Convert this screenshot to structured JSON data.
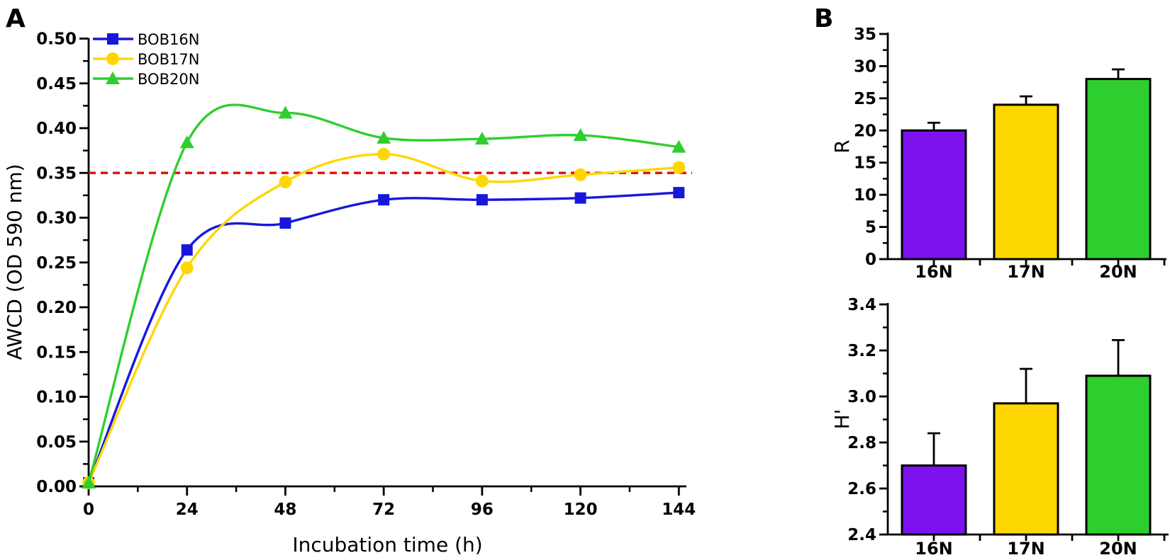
{
  "figure": {
    "panel_a_label": "A",
    "panel_b_label": "B"
  },
  "colors": {
    "blue": "#1717DC",
    "yellow": "#FFD700",
    "green": "#2FCE2F",
    "purple": "#7D12F0",
    "red_dashed": "#E81212",
    "axis": "#000000"
  },
  "chart_data": [
    {
      "id": "awcd_line",
      "type": "line",
      "xlabel": "Incubation time (h)",
      "ylabel": "AWCD (OD 590 nm)",
      "x": [
        0,
        24,
        48,
        72,
        96,
        120,
        144
      ],
      "series": [
        {
          "name": "BOB16N",
          "marker": "square",
          "color_key": "blue",
          "values": [
            0.004,
            0.264,
            0.294,
            0.32,
            0.32,
            0.322,
            0.328
          ]
        },
        {
          "name": "BOB17N",
          "marker": "circle",
          "color_key": "yellow",
          "values": [
            0.004,
            0.244,
            0.34,
            0.371,
            0.341,
            0.348,
            0.356
          ]
        },
        {
          "name": "BOB20N",
          "marker": "triangle",
          "color_key": "green",
          "values": [
            0.004,
            0.384,
            0.417,
            0.389,
            0.388,
            0.392,
            0.379
          ]
        }
      ],
      "threshold": {
        "value": 0.35,
        "style": "dashed",
        "color_key": "red_dashed"
      },
      "xlim": [
        0,
        146
      ],
      "ylim": [
        0,
        0.5
      ],
      "x_major_step": 24,
      "x_minor_step": 12,
      "y_major_step": 0.05,
      "y_minor_step": 0.025,
      "y_tick_decimals": 2,
      "grid": false,
      "smoothing": "spline",
      "legend_position": "top-left"
    },
    {
      "id": "richness_bar",
      "type": "bar",
      "ylabel": "R",
      "categories": [
        "16N",
        "17N",
        "20N"
      ],
      "values": [
        20,
        24,
        28
      ],
      "errors": [
        1.2,
        1.3,
        1.5
      ],
      "bar_color_keys": [
        "purple",
        "yellow",
        "green"
      ],
      "ylim": [
        0,
        35
      ],
      "y_major_step": 5,
      "y_tick_decimals": 0,
      "grid": false
    },
    {
      "id": "shannon_bar",
      "type": "bar",
      "ylabel": "H'",
      "categories": [
        "16N",
        "17N",
        "20N"
      ],
      "values": [
        2.7,
        2.97,
        3.09
      ],
      "errors": [
        0.14,
        0.15,
        0.155
      ],
      "bar_color_keys": [
        "purple",
        "yellow",
        "green"
      ],
      "ylim": [
        2.4,
        3.4
      ],
      "y_major_step": 0.2,
      "y_tick_decimals": 1,
      "grid": false
    }
  ]
}
